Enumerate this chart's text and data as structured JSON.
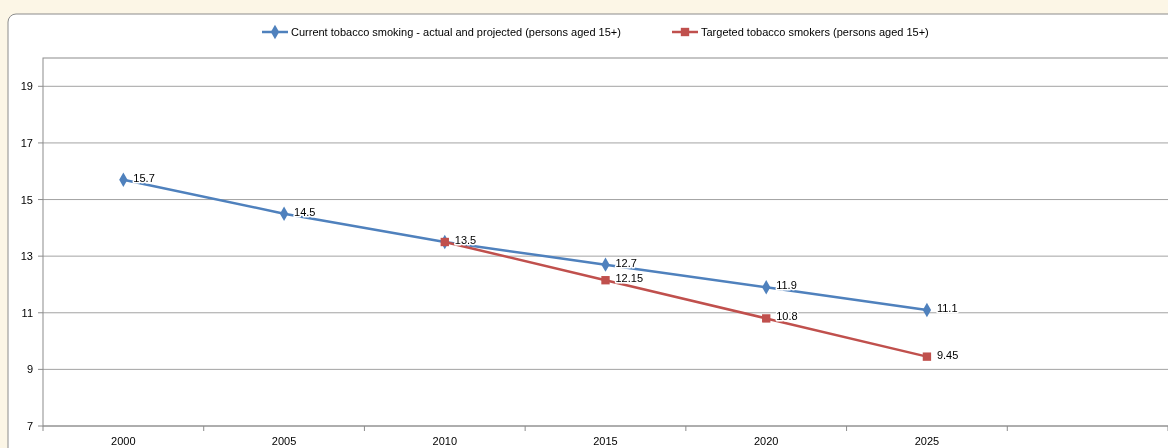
{
  "chart_data": {
    "type": "line",
    "categories": [
      "2000",
      "2005",
      "2010",
      "2015",
      "2020",
      "2025",
      null
    ],
    "series": [
      {
        "name": "Current tobacco smoking - actual and projected (persons aged 15+)",
        "color": "#4f81bd",
        "marker": "diamond",
        "values": [
          15.7,
          14.5,
          13.5,
          12.7,
          11.9,
          11.1,
          null
        ],
        "value_labels": [
          "15.7",
          "14.5",
          null,
          "12.7",
          "11.9",
          "11.1",
          null
        ]
      },
      {
        "name": "Targeted tobacco smokers (persons aged 15+)",
        "color": "#c0504d",
        "marker": "square",
        "values": [
          null,
          null,
          13.5,
          12.15,
          10.8,
          9.45,
          null
        ],
        "value_labels": [
          null,
          null,
          "13.5",
          "12.15",
          "10.8",
          "9.45",
          null
        ]
      }
    ],
    "ylim": [
      7,
      20
    ],
    "yticks": [
      7,
      9,
      11,
      13,
      15,
      17,
      19
    ],
    "grid": "y",
    "legend": "top"
  }
}
